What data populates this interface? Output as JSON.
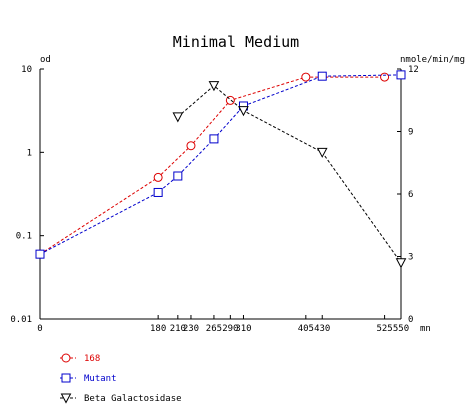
{
  "chart_data": {
    "type": "line",
    "title": "Minimal Medium",
    "y_left_label": "od",
    "y_right_label": "nmole/min/mg",
    "x_unit_label": "mn",
    "x_scale": "linear",
    "y_left_scale": "log",
    "xlim": [
      0,
      550
    ],
    "ylim_left": [
      0.01,
      10
    ],
    "ylim_right": [
      0,
      12
    ],
    "x_ticks": [
      0,
      180,
      210,
      230,
      265,
      290,
      310,
      405,
      430,
      525,
      550
    ],
    "x_tick_labels": [
      "0",
      "180",
      "210",
      "230",
      "265",
      "290",
      "310",
      "405",
      "430",
      "525",
      "550"
    ],
    "y_left_ticks": [
      0.01,
      0.1,
      1,
      10
    ],
    "y_left_tick_labels": [
      "0.01",
      "0.1",
      "1",
      "10"
    ],
    "y_right_ticks": [
      0,
      3,
      6,
      9,
      12
    ],
    "y_right_tick_labels": [
      "0",
      "3",
      "6",
      "9",
      "12"
    ],
    "legend_position": "bottom-left",
    "series": [
      {
        "name": "168",
        "axis": "left",
        "marker": "circle",
        "color": "#dd0000",
        "x": [
          0,
          180,
          230,
          290,
          405,
          525
        ],
        "y": [
          0.06,
          0.5,
          1.2,
          4.2,
          8,
          8
        ]
      },
      {
        "name": "Mutant",
        "axis": "left",
        "marker": "square",
        "color": "#0000cc",
        "x": [
          0,
          180,
          210,
          265,
          310,
          430,
          550
        ],
        "y": [
          0.06,
          0.33,
          0.52,
          1.45,
          3.6,
          8.2,
          8.5
        ]
      },
      {
        "name": "Beta Galactosidase",
        "axis": "right",
        "marker": "triangle-down",
        "color": "#000000",
        "x": [
          210,
          265,
          310,
          430,
          550
        ],
        "y": [
          9.7,
          11.2,
          10,
          8,
          2.7
        ]
      }
    ]
  }
}
